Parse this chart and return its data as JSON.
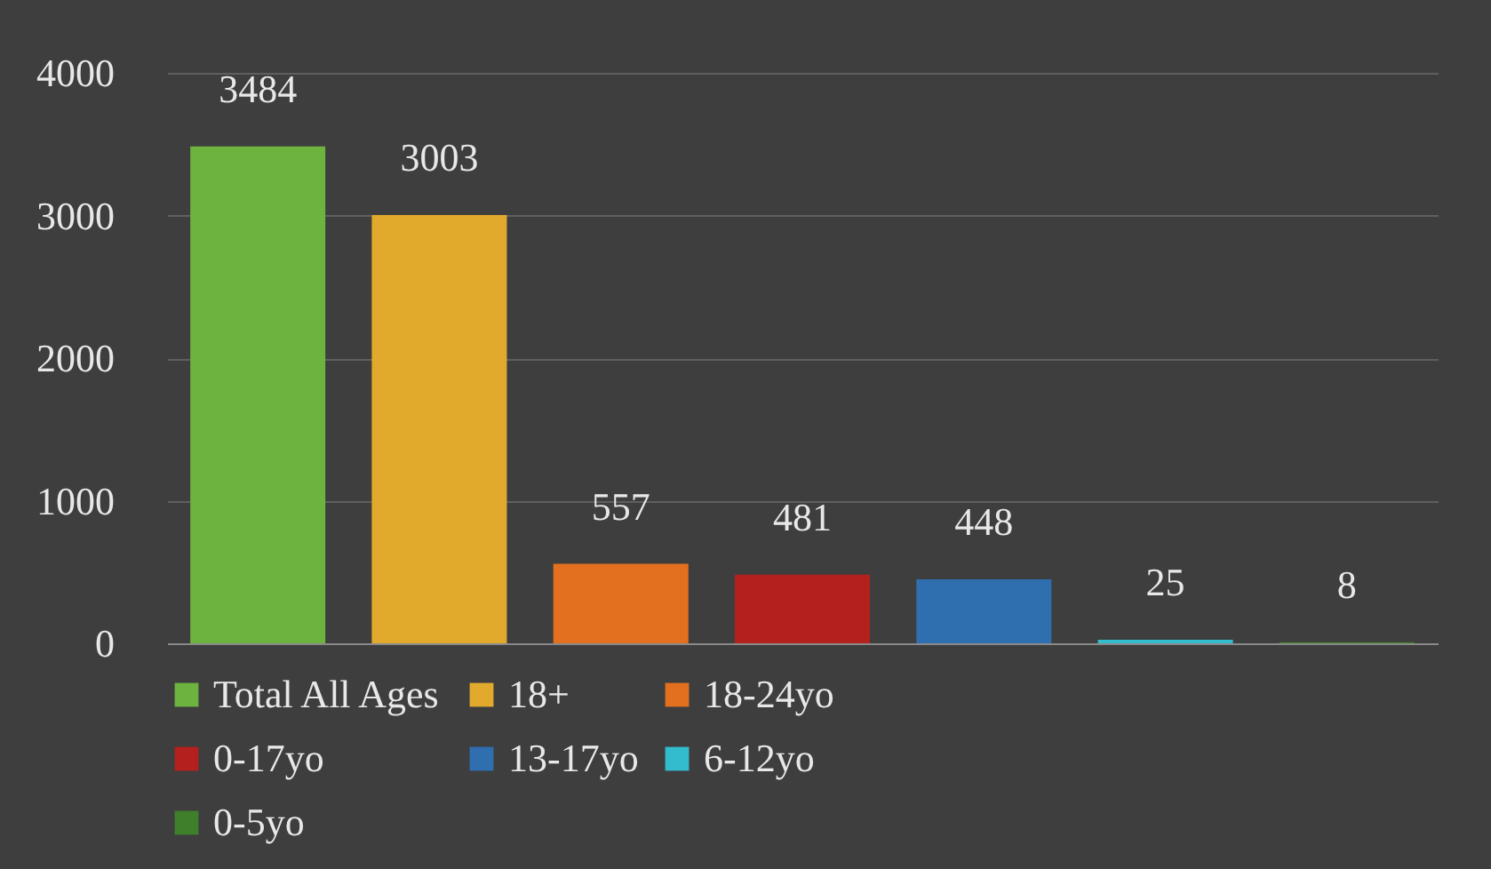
{
  "chart_data": {
    "type": "bar",
    "categories": [
      null,
      null,
      null,
      null,
      null,
      null,
      null
    ],
    "series": [
      {
        "name": "Total All Ages",
        "color": "#6cb33f",
        "values": [
          3484,
          null,
          null,
          null,
          null,
          null,
          null
        ]
      },
      {
        "name": "18+",
        "color": "#e2aa2c",
        "values": [
          null,
          3003,
          null,
          null,
          null,
          null,
          null
        ]
      },
      {
        "name": "18-24yo",
        "color": "#e2701e",
        "values": [
          null,
          null,
          557,
          null,
          null,
          null,
          null
        ]
      },
      {
        "name": "0-17yo",
        "color": "#b4201e",
        "values": [
          null,
          null,
          null,
          481,
          null,
          null,
          null
        ]
      },
      {
        "name": "13-17yo",
        "color": "#2f6fb0",
        "values": [
          null,
          null,
          null,
          null,
          448,
          null,
          null
        ]
      },
      {
        "name": "6-12yo",
        "color": "#33bccc",
        "values": [
          null,
          null,
          null,
          null,
          null,
          25,
          null
        ]
      },
      {
        "name": "0-5yo",
        "color": "#3f7f2c",
        "values": [
          null,
          null,
          null,
          null,
          null,
          null,
          8
        ]
      }
    ],
    "ylim": [
      0,
      4000
    ],
    "yticks": [
      0,
      1000,
      2000,
      3000,
      4000
    ],
    "grid": "y",
    "data_labels": true,
    "legend": "bottom",
    "tick_labels": "y"
  }
}
